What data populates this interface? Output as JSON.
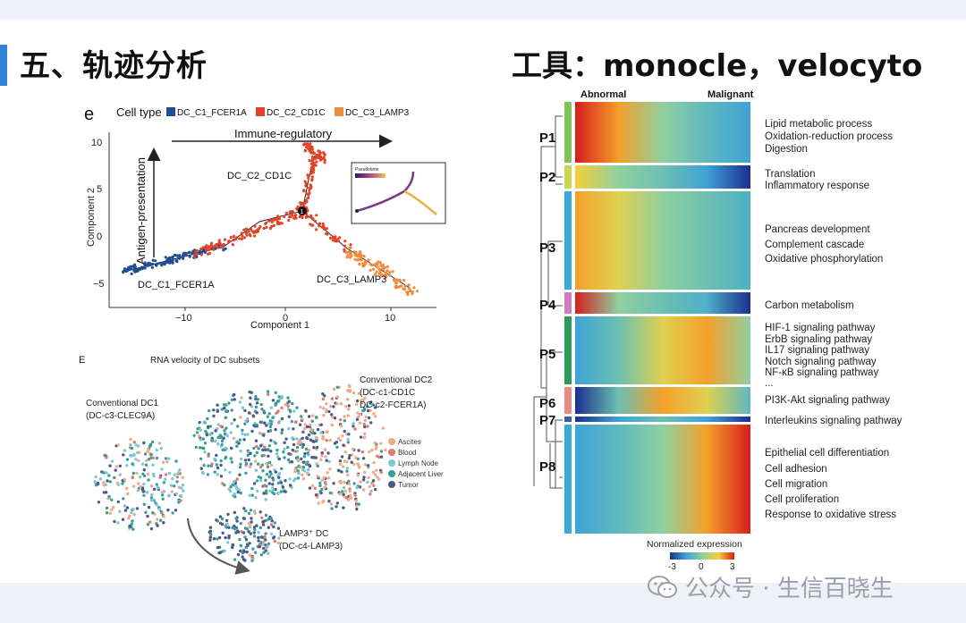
{
  "slide": {
    "title_left": "五、轨迹分析",
    "title_right": "工具：monocle，velocyto"
  },
  "panel_e": {
    "letter": "e",
    "legend_title": "Cell type",
    "legend": [
      {
        "label": "DC_C1_FCER1A",
        "color": "#1f4e93"
      },
      {
        "label": "DC_C2_CD1C",
        "color": "#e0452a"
      },
      {
        "label": "DC_C3_LAMP3",
        "color": "#f08a3c"
      }
    ],
    "arrow_horizontal": "Immune-regulatory",
    "arrow_vertical": "Antigen-presentation",
    "branch_labels": [
      "DC_C2_CD1C",
      "DC_C1_FCER1A",
      "DC_C3_LAMP3"
    ],
    "branch_point": "1",
    "inset_title": "Pseudotime",
    "x_axis_label": "Component 1",
    "y_axis_label": "Component 2",
    "x_ticks": [
      "−10",
      "0",
      "10"
    ],
    "y_ticks": [
      "10",
      "5",
      "0",
      "−5"
    ]
  },
  "panel_E": {
    "letter": "E",
    "title": "RNA velocity of DC subsets",
    "clusters": [
      {
        "label": "Conventional DC1",
        "sublabel": "(DC-c3-CLEC9A)"
      },
      {
        "label": "Conventional DC2",
        "sublabel": "(DC-c1-CD1C",
        "sublabel2": "DC-c2-FCER1A)"
      },
      {
        "label": "LAMP3⁺ DC",
        "sublabel": "(DC-c4-LAMP3)"
      }
    ],
    "legend": [
      {
        "label": "Ascites",
        "color": "#f0a98b"
      },
      {
        "label": "Blood",
        "color": "#e07a6a"
      },
      {
        "label": "Lymph Node",
        "color": "#7dc6d6"
      },
      {
        "label": "Adjacent Liver",
        "color": "#3a9d9a"
      },
      {
        "label": "Tumor",
        "color": "#4a5a8a"
      }
    ]
  },
  "heatmap": {
    "col_left": "Abnormal",
    "col_right": "Malignant",
    "clusters": [
      {
        "id": "P1",
        "terms": [
          "Lipid metabolic process",
          "Oxidation-reduction process",
          "Digestion"
        ]
      },
      {
        "id": "P2",
        "terms": [
          "Translation",
          "Inflammatory response"
        ]
      },
      {
        "id": "P3",
        "terms": [
          "Pancreas development",
          "Complement cascade",
          "Oxidative phosphorylation"
        ]
      },
      {
        "id": "P4",
        "terms": [
          "Carbon metabolism"
        ]
      },
      {
        "id": "P5",
        "terms": [
          "HIF-1 signaling pathway",
          "ErbB signaling pathway",
          "IL17 signaling pathway",
          "Notch signaling pathway",
          "NF-κB signaling pathway",
          "..."
        ]
      },
      {
        "id": "P6",
        "terms": [
          "PI3K-Akt signaling pathway"
        ]
      },
      {
        "id": "P7",
        "terms": [
          "Interleukins signaling pathway"
        ]
      },
      {
        "id": "P8",
        "terms": [
          "Epithelial cell differentiation",
          "Cell adhesion",
          "Cell migration",
          "Cell proliferation",
          "Response to oxidative stress"
        ]
      }
    ],
    "scale_title": "Normalized expression",
    "scale_ticks": [
      "-3",
      "0",
      "3"
    ]
  },
  "watermark": {
    "text": "公众号 · 生信百晓生",
    "icon": "wechat-icon"
  },
  "colors": {
    "accent": "#2f86d6",
    "background": "#eef1f7"
  }
}
